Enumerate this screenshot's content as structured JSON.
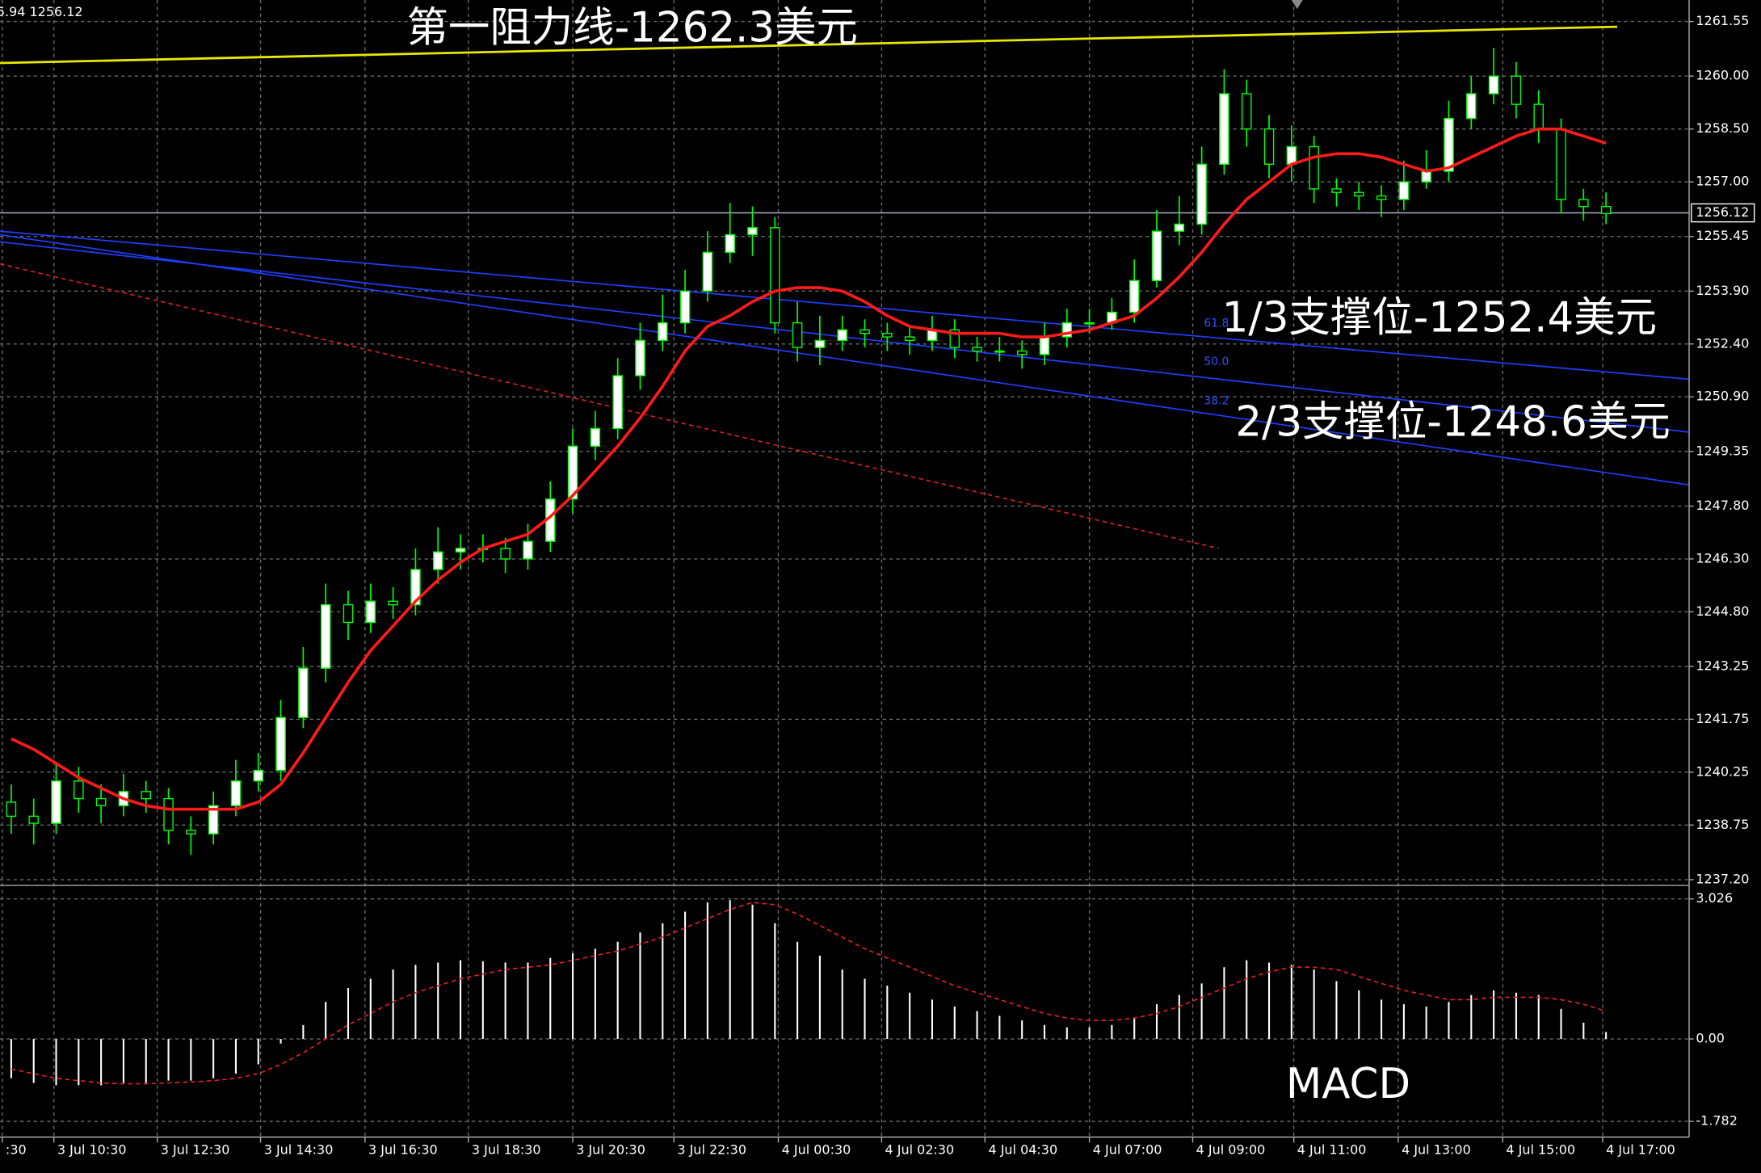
{
  "chart_data": [
    {
      "type": "candlestick",
      "header": "5.94 1256.12",
      "annotations": {
        "resistance": "第一阻力线-1262.3美元",
        "support1": "1/3支撑位-1252.4美元",
        "support2": "2/3支撑位-1248.6美元"
      },
      "xlim": [
        -0.5,
        74.7
      ],
      "ylim": [
        1237.07,
        1262.16
      ],
      "yticks": [
        {
          "value": 1261.55,
          "label": "1261.55"
        },
        {
          "value": 1260,
          "label": "1260.00"
        },
        {
          "value": 1258.5,
          "label": "1258.50"
        },
        {
          "value": 1257,
          "label": "1257.00"
        },
        {
          "value": 1255.45,
          "label": "1255.45"
        },
        {
          "value": 1253.9,
          "label": "1253.90"
        },
        {
          "value": 1252.4,
          "label": "1252.40"
        },
        {
          "value": 1250.9,
          "label": "1250.90"
        },
        {
          "value": 1249.35,
          "label": "1249.35"
        },
        {
          "value": 1247.8,
          "label": "1247.80"
        },
        {
          "value": 1246.3,
          "label": "1246.30"
        },
        {
          "value": 1244.8,
          "label": "1244.80"
        },
        {
          "value": 1243.25,
          "label": "1243.25"
        },
        {
          "value": 1241.75,
          "label": "1241.75"
        },
        {
          "value": 1240.25,
          "label": "1240.25"
        },
        {
          "value": 1238.75,
          "label": "1238.75"
        },
        {
          "value": 1237.2,
          "label": "1237.20"
        }
      ],
      "grid": true,
      "up_color": "#ffffff",
      "down_color": "#000000",
      "wick_color": "#00ff00",
      "open": [
        1239.4,
        1239.0,
        1238.8,
        1240.0,
        1239.5,
        1239.3,
        1239.7,
        1239.5,
        1238.6,
        1238.5,
        1239.3,
        1240.0,
        1240.3,
        1241.8,
        1243.2,
        1245.0,
        1244.5,
        1245.1,
        1245.0,
        1246.0,
        1246.5,
        1246.6,
        1246.6,
        1246.3,
        1246.8,
        1248.0,
        1249.5,
        1250.0,
        1251.5,
        1252.5,
        1253.0,
        1253.9,
        1255.0,
        1255.5,
        1255.7,
        1253.0,
        1252.3,
        1252.5,
        1252.8,
        1252.7,
        1252.6,
        1252.5,
        1252.8,
        1252.3,
        1252.2,
        1252.2,
        1252.1,
        1252.6,
        1253.0,
        1253.0,
        1253.3,
        1254.2,
        1255.6,
        1255.8,
        1257.5,
        1259.5,
        1258.5,
        1257.5,
        1258.0,
        1256.8,
        1256.7,
        1256.6,
        1256.5,
        1257.0,
        1257.3,
        1258.8,
        1259.5,
        1260.0,
        1259.2,
        1258.5,
        1256.5,
        1256.3
      ],
      "high": [
        1239.9,
        1239.5,
        1240.5,
        1240.4,
        1239.9,
        1240.2,
        1240.0,
        1239.8,
        1239.0,
        1239.7,
        1240.6,
        1240.8,
        1242.3,
        1243.8,
        1245.6,
        1245.4,
        1245.6,
        1245.5,
        1246.6,
        1247.2,
        1247.0,
        1247.0,
        1246.9,
        1247.3,
        1248.5,
        1250.0,
        1250.5,
        1252.0,
        1253.0,
        1253.8,
        1254.5,
        1255.6,
        1256.4,
        1256.3,
        1256.0,
        1253.6,
        1253.2,
        1253.2,
        1253.1,
        1253.0,
        1252.9,
        1253.2,
        1253.1,
        1252.6,
        1252.6,
        1252.5,
        1253.0,
        1253.4,
        1253.4,
        1253.7,
        1254.8,
        1256.2,
        1256.6,
        1258.0,
        1260.2,
        1259.9,
        1258.9,
        1258.6,
        1258.3,
        1257.1,
        1257.0,
        1256.9,
        1257.6,
        1257.9,
        1259.3,
        1260.0,
        1260.8,
        1260.4,
        1259.6,
        1258.8,
        1256.8,
        1256.7
      ],
      "low": [
        1238.5,
        1238.2,
        1238.5,
        1239.1,
        1238.8,
        1239.0,
        1239.1,
        1238.2,
        1237.9,
        1238.2,
        1239.0,
        1239.7,
        1240.0,
        1241.5,
        1242.8,
        1244.0,
        1244.2,
        1244.6,
        1244.7,
        1245.6,
        1246.0,
        1246.2,
        1245.9,
        1246.0,
        1246.5,
        1247.6,
        1249.1,
        1249.7,
        1251.1,
        1252.2,
        1252.7,
        1253.6,
        1254.7,
        1254.9,
        1252.7,
        1251.9,
        1251.8,
        1252.2,
        1252.3,
        1252.2,
        1252.1,
        1252.2,
        1252.0,
        1251.9,
        1251.9,
        1251.7,
        1251.8,
        1252.3,
        1252.7,
        1252.8,
        1253.0,
        1254.0,
        1255.2,
        1255.5,
        1257.2,
        1258.0,
        1257.1,
        1257.0,
        1256.4,
        1256.3,
        1256.2,
        1256.0,
        1256.2,
        1256.8,
        1257.0,
        1258.5,
        1259.2,
        1258.8,
        1258.1,
        1256.1,
        1255.9,
        1255.8
      ],
      "close": [
        1239.0,
        1238.8,
        1240.0,
        1239.5,
        1239.3,
        1239.7,
        1239.5,
        1238.6,
        1238.5,
        1239.3,
        1240.0,
        1240.3,
        1241.8,
        1243.2,
        1245.0,
        1244.5,
        1245.1,
        1245.0,
        1246.0,
        1246.5,
        1246.6,
        1246.6,
        1246.3,
        1246.8,
        1248.0,
        1249.5,
        1250.0,
        1251.5,
        1252.5,
        1253.0,
        1253.9,
        1255.0,
        1255.5,
        1255.7,
        1253.0,
        1252.3,
        1252.5,
        1252.8,
        1252.7,
        1252.6,
        1252.5,
        1252.8,
        1252.3,
        1252.2,
        1252.2,
        1252.1,
        1252.6,
        1253.0,
        1253.0,
        1253.3,
        1254.2,
        1255.6,
        1255.8,
        1257.5,
        1259.5,
        1258.5,
        1257.5,
        1258.0,
        1256.8,
        1256.7,
        1256.6,
        1256.5,
        1257.0,
        1257.3,
        1258.8,
        1259.5,
        1260.0,
        1259.2,
        1258.5,
        1256.5,
        1256.3,
        1256.1
      ],
      "moving_average": {
        "color": "#ff1a1a",
        "values": [
          1241.2,
          1240.9,
          1240.5,
          1240.1,
          1239.8,
          1239.5,
          1239.3,
          1239.2,
          1239.2,
          1239.2,
          1239.2,
          1239.4,
          1239.9,
          1240.8,
          1241.8,
          1242.8,
          1243.7,
          1244.4,
          1245.1,
          1245.7,
          1246.2,
          1246.6,
          1246.8,
          1247.0,
          1247.5,
          1248.1,
          1248.8,
          1249.5,
          1250.3,
          1251.2,
          1252.2,
          1252.9,
          1253.2,
          1253.6,
          1253.9,
          1254.0,
          1254.0,
          1253.9,
          1253.6,
          1253.2,
          1252.9,
          1252.8,
          1252.7,
          1252.7,
          1252.7,
          1252.6,
          1252.6,
          1252.7,
          1252.8,
          1253.0,
          1253.2,
          1253.7,
          1254.3,
          1255.0,
          1255.8,
          1256.5,
          1257.0,
          1257.5,
          1257.7,
          1257.8,
          1257.8,
          1257.7,
          1257.5,
          1257.3,
          1257.4,
          1257.7,
          1258.0,
          1258.3,
          1258.5,
          1258.5,
          1258.3,
          1258.1
        ]
      },
      "lines": [
        {
          "color": "#e8e800",
          "dash": false,
          "x": [
            -0.5,
            71.5
          ],
          "values": [
            1260.37,
            1261.4
          ]
        },
        {
          "color": "#1f3fff",
          "dash": false,
          "x": [
            -0.5,
            74.7
          ],
          "values": [
            1255.6,
            1251.4
          ]
        },
        {
          "color": "#1f3fff",
          "dash": false,
          "x": [
            -0.5,
            74.7
          ],
          "values": [
            1255.3,
            1249.9
          ]
        },
        {
          "color": "#1f3fff",
          "dash": false,
          "x": [
            -0.5,
            74.7
          ],
          "values": [
            1255.5,
            1248.4
          ]
        },
        {
          "color": "#d02020",
          "dash": true,
          "x": [
            -0.5,
            53.75
          ],
          "values": [
            1254.67,
            1246.6
          ]
        }
      ],
      "fib_labels": [
        "61.8",
        "50.0",
        "38.2"
      ],
      "last_price": 1256.12
    },
    {
      "type": "macd",
      "title": "MACD",
      "xlim": [
        -0.5,
        74.7
      ],
      "ylim": [
        -2.12,
        3.27
      ],
      "yticks": [
        3.026,
        {
          "value": 0,
          "label": "0.00"
        },
        -1.782
      ],
      "histogram": {
        "color": "#ffffff",
        "values": [
          -0.85,
          -0.95,
          -1.0,
          -1.0,
          -1.0,
          -0.95,
          -0.95,
          -0.9,
          -0.9,
          -0.85,
          -0.75,
          -0.55,
          -0.1,
          0.3,
          0.8,
          1.1,
          1.3,
          1.5,
          1.6,
          1.65,
          1.7,
          1.68,
          1.65,
          1.65,
          1.75,
          1.85,
          1.95,
          2.1,
          2.3,
          2.5,
          2.75,
          2.95,
          3.0,
          2.9,
          2.5,
          2.1,
          1.8,
          1.5,
          1.3,
          1.15,
          1.0,
          0.85,
          0.7,
          0.6,
          0.5,
          0.4,
          0.3,
          0.25,
          0.25,
          0.3,
          0.45,
          0.75,
          0.95,
          1.2,
          1.55,
          1.7,
          1.65,
          1.6,
          1.5,
          1.25,
          1.05,
          0.85,
          0.75,
          0.7,
          0.8,
          0.95,
          1.05,
          1.0,
          0.95,
          0.65,
          0.35,
          0.15
        ]
      },
      "signal": {
        "color": "#e02020",
        "values": [
          -0.65,
          -0.75,
          -0.85,
          -0.9,
          -0.95,
          -0.97,
          -0.97,
          -0.95,
          -0.93,
          -0.9,
          -0.85,
          -0.75,
          -0.55,
          -0.3,
          0.0,
          0.3,
          0.55,
          0.8,
          1.0,
          1.15,
          1.3,
          1.4,
          1.5,
          1.55,
          1.6,
          1.7,
          1.8,
          1.9,
          2.05,
          2.2,
          2.4,
          2.6,
          2.8,
          2.95,
          2.9,
          2.7,
          2.45,
          2.2,
          1.95,
          1.75,
          1.55,
          1.35,
          1.15,
          1.0,
          0.85,
          0.7,
          0.55,
          0.45,
          0.4,
          0.4,
          0.45,
          0.55,
          0.7,
          0.9,
          1.1,
          1.3,
          1.45,
          1.55,
          1.55,
          1.5,
          1.35,
          1.2,
          1.05,
          0.95,
          0.85,
          0.85,
          0.9,
          0.9,
          0.9,
          0.85,
          0.75,
          0.6
        ]
      },
      "xticks": [
        {
          "value": -0.4,
          "label": ":30"
        },
        {
          "value": 1.9,
          "label": "3 Jul 10:30"
        },
        {
          "value": 6.5,
          "label": "3 Jul 12:30"
        },
        {
          "value": 11.1,
          "label": "3 Jul 14:30"
        },
        {
          "value": 15.75,
          "label": "3 Jul 16:30"
        },
        {
          "value": 20.35,
          "label": "3 Jul 18:30"
        },
        {
          "value": 25,
          "label": "3 Jul 20:30"
        },
        {
          "value": 29.5,
          "label": "3 Jul 22:30"
        },
        {
          "value": 34.15,
          "label": "4 Jul 00:30"
        },
        {
          "value": 38.75,
          "label": "4 Jul 02:30"
        },
        {
          "value": 43.35,
          "label": "4 Jul 04:30"
        },
        {
          "value": 48,
          "label": "4 Jul 07:00"
        },
        {
          "value": 52.6,
          "label": "4 Jul 09:00"
        },
        {
          "value": 57.1,
          "label": "4 Jul 11:00"
        },
        {
          "value": 61.75,
          "label": "4 Jul 13:00"
        },
        {
          "value": 66.4,
          "label": "4 Jul 15:00"
        },
        {
          "value": 70.85,
          "label": "4 Jul 17:00"
        }
      ]
    }
  ]
}
